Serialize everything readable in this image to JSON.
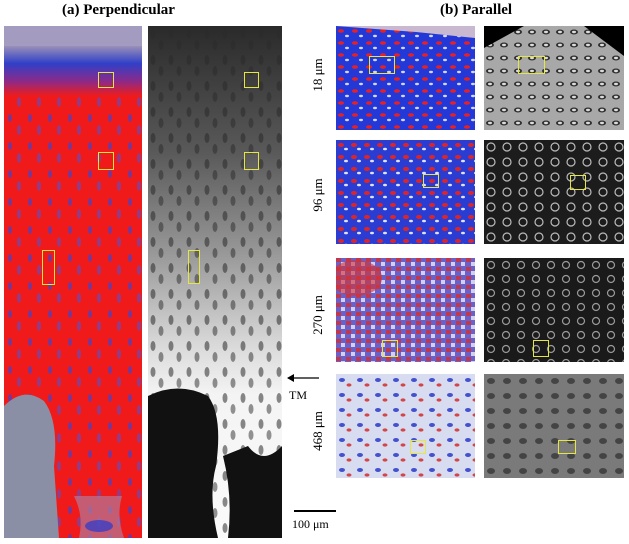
{
  "figure": {
    "panel_a_title": "(a) Perpendicular",
    "panel_b_title": "(b) Parallel",
    "depth_labels": [
      "18 μm",
      "96 μm",
      "270 μm",
      "468 μm"
    ],
    "tm_label": "TM",
    "scale_bar_label": "100 μm"
  },
  "colors": {
    "red_tissue": "#f01a1a",
    "blue_tissue": "#2a3ad0",
    "highlight_box": "#e6e640",
    "bone_gray": "#8a8fa6"
  }
}
